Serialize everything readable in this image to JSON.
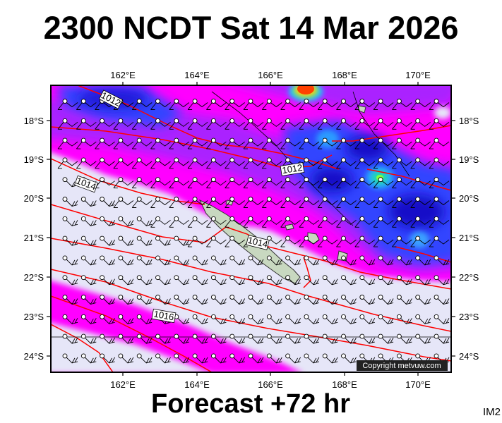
{
  "title": "2300 NCDT Sat 14 Mar 2026",
  "footer": "Forecast +72 hr",
  "code": "IM2",
  "copyright": "Copyright metvuw.com",
  "map": {
    "lon_range": [
      160.2,
      171
    ],
    "lat_range": [
      -24.4,
      -17.2
    ],
    "lon_ticks": [
      "162°E",
      "164°E",
      "166°E",
      "168°E",
      "170°E"
    ],
    "lat_ticks": [
      "18°S",
      "19°S",
      "20°S",
      "21°S",
      "22°S",
      "23°S",
      "24°S"
    ],
    "isobar_labels": [
      "1012",
      "1012",
      "1014",
      "1014",
      "1016"
    ],
    "colors": {
      "calm": "#e6e6f8",
      "magenta": "#ff00ff",
      "violet": "#aa22ff",
      "blue": "#2233ff",
      "dark_blue": "#1410c8",
      "isobar": "#ff0000",
      "land": "#c8d8c0"
    }
  }
}
